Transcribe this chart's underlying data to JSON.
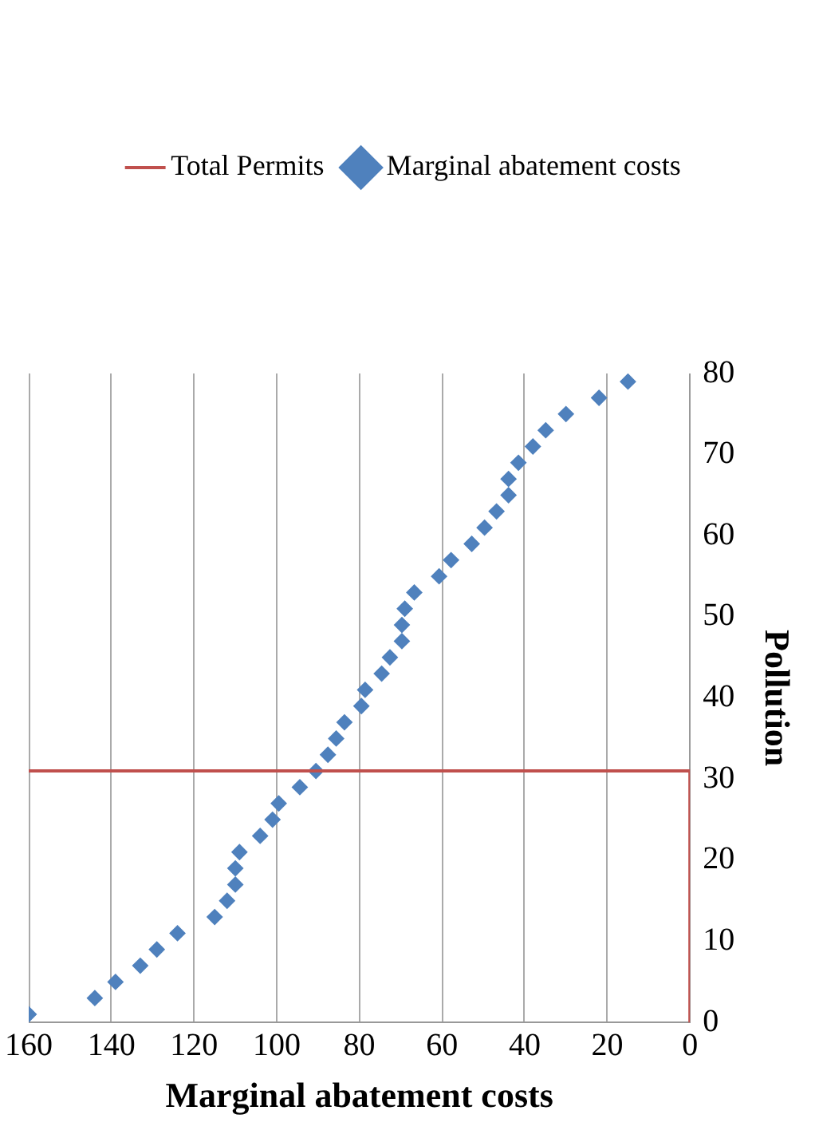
{
  "chart_data": {
    "type": "scatter",
    "xlabel": "Marginal abatement costs",
    "ylabel": "Pollution",
    "xlim": [
      160,
      0
    ],
    "xticks": [
      160,
      140,
      120,
      100,
      80,
      60,
      40,
      20,
      0
    ],
    "ylim": [
      0,
      80
    ],
    "yticks": [
      0,
      10,
      20,
      30,
      40,
      50,
      60,
      70,
      80
    ],
    "grid": "x",
    "legend": "top",
    "marker": "diamond",
    "series": [
      {
        "name": "Total Permits",
        "type": "line",
        "color": "#c0504d",
        "line_style": "solid",
        "marker": "none",
        "x": [
          160,
          0,
          0
        ],
        "values": [
          31,
          31,
          0
        ]
      },
      {
        "name": "Marginal abatement costs",
        "type": "scatter",
        "color": "#4f81bd",
        "x": [
          160,
          144,
          139,
          133,
          129,
          124,
          115,
          112,
          110,
          110,
          109,
          104,
          101,
          99.5,
          94.4,
          90.5,
          87.6,
          85.6,
          83.6,
          79.5,
          78.6,
          74.6,
          72.6,
          69.7,
          69.7,
          69,
          66.7,
          60.7,
          57.8,
          52.8,
          49.7,
          46.8,
          43.9,
          43.9,
          41.5,
          38,
          34.9,
          30,
          22,
          15
        ],
        "values": [
          1,
          3,
          5,
          7,
          9,
          11,
          13,
          15,
          17,
          19,
          21,
          23,
          25,
          27,
          29,
          31,
          33,
          35,
          37,
          39,
          41,
          43,
          45,
          47,
          49,
          51,
          53,
          55,
          57,
          59,
          61,
          63,
          65,
          67,
          69,
          71,
          73,
          75,
          77,
          79
        ]
      }
    ]
  }
}
